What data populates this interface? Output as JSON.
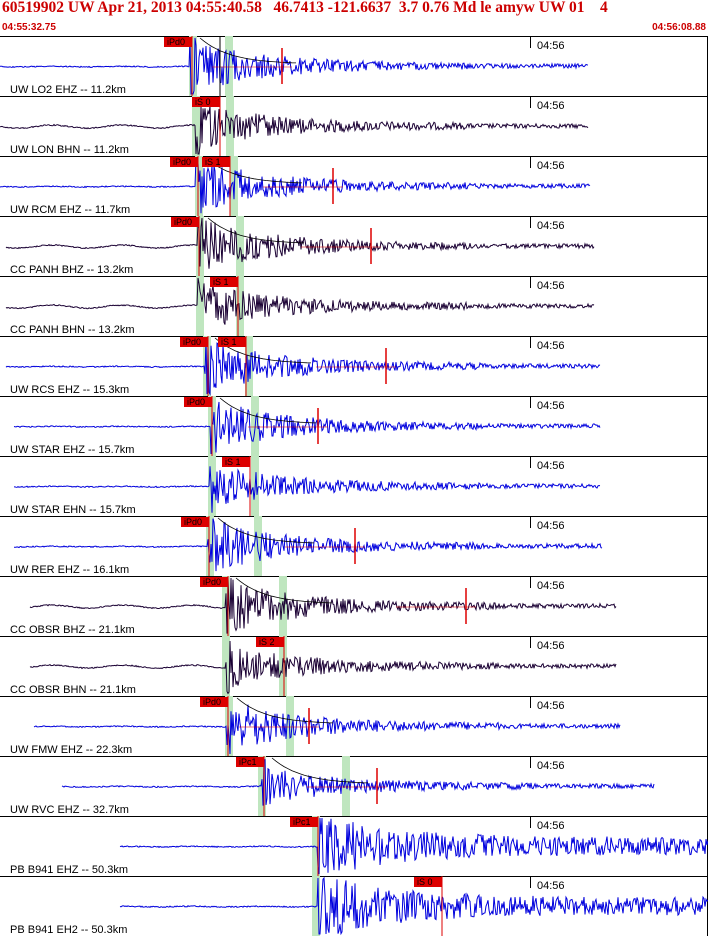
{
  "header": {
    "title": "60519902 UW Apr 21, 2013 04:55:40.58   46.7413 -121.6637  3.7 0.76 Md le amyw UW 01    4",
    "start_time": "04:55:32.75",
    "end_time": "04:56:08.88"
  },
  "colors": {
    "blue": "#0000dd",
    "dark": "#1a0033",
    "pick": "#dd0000",
    "band": "#bfe6bf"
  },
  "traces": [
    {
      "label": "UW LO2 EHZ -- 11.2km",
      "time": "04:56",
      "color": "blue",
      "picks": [
        {
          "text": "iPd0",
          "x": 164,
          "line": 192
        },
        {
          "text": "",
          "x": 0,
          "line": 220
        }
      ],
      "pband": 193,
      "sband": 229,
      "onset": 190,
      "start": 0,
      "end": 588,
      "amp": 1.0,
      "redspike": 282,
      "curve": true
    },
    {
      "label": "UW LON BHN -- 11.2km",
      "time": "04:56",
      "color": "dark",
      "picks": [
        {
          "text": "iS 0",
          "x": 192,
          "line": 220
        }
      ],
      "pband": 196,
      "sband": 230,
      "onset": 196,
      "start": 0,
      "end": 588,
      "amp": 0.9,
      "redspike": 0,
      "curve": false
    },
    {
      "label": "UW RCM EHZ -- 11.7km",
      "time": "04:56",
      "color": "blue",
      "picks": [
        {
          "text": "iPd0",
          "x": 170,
          "line": 198
        },
        {
          "text": "iS 1",
          "x": 202,
          "line": 230
        }
      ],
      "pband": 199,
      "sband": 234,
      "onset": 196,
      "start": 0,
      "end": 590,
      "amp": 1.0,
      "redspike": 333,
      "curve": true
    },
    {
      "label": "CC PANH BHZ -- 13.2km",
      "time": "04:56",
      "color": "dark",
      "picks": [
        {
          "text": "iPd0",
          "x": 171,
          "line": 199
        }
      ],
      "pband": 200,
      "sband": 240,
      "onset": 198,
      "start": 6,
      "end": 594,
      "amp": 1.0,
      "redspike": 371,
      "curve": true
    },
    {
      "label": "CC PANH BHN -- 13.2km",
      "time": "04:56",
      "color": "dark",
      "picks": [
        {
          "text": "iS 1",
          "x": 210,
          "line": 238
        }
      ],
      "pband": 200,
      "sband": 240,
      "onset": 198,
      "start": 6,
      "end": 594,
      "amp": 0.9,
      "redspike": 0,
      "curve": false
    },
    {
      "label": "UW RCS EHZ -- 15.3km",
      "time": "04:56",
      "color": "blue",
      "picks": [
        {
          "text": "iPd0",
          "x": 180,
          "line": 208
        },
        {
          "text": "iS 1",
          "x": 218,
          "line": 246
        }
      ],
      "pband": 207,
      "sband": 249,
      "onset": 205,
      "start": 6,
      "end": 600,
      "amp": 1.0,
      "redspike": 386,
      "curve": true
    },
    {
      "label": "UW STAR EHZ -- 15.7km",
      "time": "04:56",
      "color": "blue",
      "picks": [
        {
          "text": "iPd0",
          "x": 184,
          "line": 212
        }
      ],
      "pband": 212,
      "sband": 255,
      "onset": 210,
      "start": 14,
      "end": 600,
      "amp": 1.0,
      "redspike": 318,
      "curve": true
    },
    {
      "label": "UW STAR EHN -- 15.7km",
      "time": "04:56",
      "color": "blue",
      "picks": [
        {
          "text": "iS 1",
          "x": 222,
          "line": 250
        }
      ],
      "pband": 212,
      "sband": 255,
      "onset": 210,
      "start": 14,
      "end": 600,
      "amp": 0.8,
      "redspike": 0,
      "curve": false
    },
    {
      "label": "UW RER EHZ -- 16.1km",
      "time": "04:56",
      "color": "blue",
      "picks": [
        {
          "text": "iPd0",
          "x": 181,
          "line": 209
        }
      ],
      "pband": 210,
      "sband": 258,
      "onset": 208,
      "start": 14,
      "end": 602,
      "amp": 1.0,
      "redspike": 355,
      "curve": true
    },
    {
      "label": "CC OBSR BHZ -- 21.1km",
      "time": "04:56",
      "color": "dark",
      "picks": [
        {
          "text": "iPd0",
          "x": 200,
          "line": 228
        }
      ],
      "pband": 226,
      "sband": 283,
      "onset": 226,
      "start": 30,
      "end": 616,
      "amp": 1.0,
      "redspike": 466,
      "curve": true
    },
    {
      "label": "CC OBSR BHN -- 21.1km",
      "time": "04:56",
      "color": "dark",
      "picks": [
        {
          "text": "iS 2",
          "x": 256,
          "line": 284
        }
      ],
      "pband": 226,
      "sband": 283,
      "onset": 226,
      "start": 30,
      "end": 616,
      "amp": 0.8,
      "redspike": 0,
      "curve": false
    },
    {
      "label": "UW FMW EHZ -- 22.3km",
      "time": "04:56",
      "color": "blue",
      "picks": [
        {
          "text": "iPd0",
          "x": 200,
          "line": 228
        }
      ],
      "pband": 229,
      "sband": 290,
      "onset": 227,
      "start": 34,
      "end": 620,
      "amp": 1.0,
      "redspike": 309,
      "curve": true
    },
    {
      "label": "UW RVC EHZ -- 32.7km",
      "time": "04:56",
      "color": "blue",
      "picks": [
        {
          "text": "iPc1",
          "x": 236,
          "line": 264
        }
      ],
      "pband": 262,
      "sband": 346,
      "onset": 262,
      "start": 62,
      "end": 654,
      "amp": 0.7,
      "redspike": 377,
      "curve": true
    },
    {
      "label": "PB B941 EHZ -- 50.3km",
      "time": "04:56",
      "color": "blue",
      "picks": [
        {
          "text": "iPc1",
          "x": 290,
          "line": 318
        }
      ],
      "pband": 316,
      "sband": 0,
      "onset": 318,
      "start": 120,
      "end": 708,
      "amp": 1.0,
      "redspike": 0,
      "curve": false
    },
    {
      "label": "PB B941 EH2 -- 50.3km",
      "time": "04:56",
      "color": "blue",
      "picks": [
        {
          "text": "iS 0",
          "x": 414,
          "line": 442
        }
      ],
      "pband": 316,
      "sband": 0,
      "onset": 318,
      "start": 120,
      "end": 708,
      "amp": 1.0,
      "redspike": 0,
      "curve": false
    }
  ]
}
